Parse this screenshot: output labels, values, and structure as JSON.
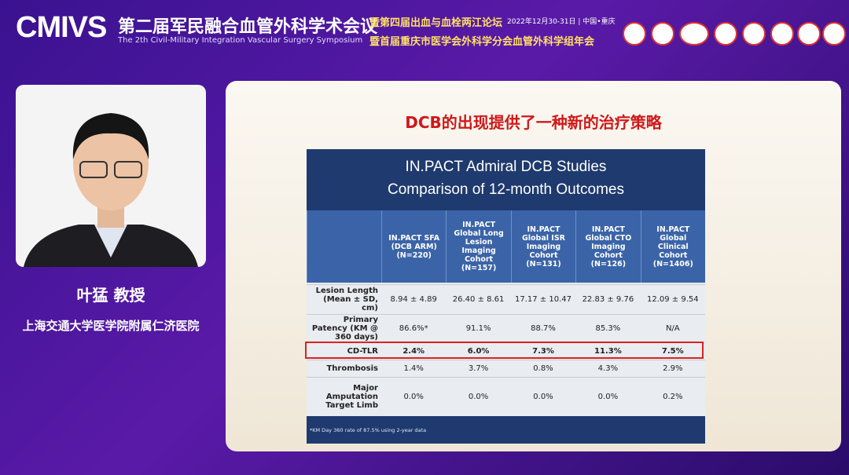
{
  "header": {
    "logo": "CMIVS",
    "title": "第二届军民融合血管外科学术会议",
    "subtitle": "The 2th Civil-Military Integration Vascular Surgery Symposium",
    "forum1": "暨第四届出血与血栓两江论坛",
    "forum2": "暨首届重庆市医学会外科学分会血管外科学组年会",
    "date": "2022年12月30-31日 | 中国•重庆"
  },
  "speaker": {
    "name": "叶猛 教授",
    "affiliation": "上海交通大学医学院附属仁济医院"
  },
  "slide": {
    "title": "DCB的出现提供了一种新的治疗策略",
    "table": {
      "title": [
        "IN.PACT Admiral DCB Studies",
        "Comparison of 12-month Outcomes"
      ],
      "columns": [
        "IN.PACT SFA (DCB ARM) (N=220)",
        "IN.PACT Global Long Lesion Imaging Cohort (N=157)",
        "IN.PACT Global ISR Imaging Cohort (N=131)",
        "IN.PACT Global CTO Imaging Cohort (N=126)",
        "IN.PACT Global Clinical Cohort (N=1406)"
      ],
      "rows": [
        [
          "Lesion Length (Mean ± SD, cm)",
          "8.94 ± 4.89",
          "26.40 ± 8.61",
          "17.17 ± 10.47",
          "22.83 ± 9.76",
          "12.09 ± 9.54"
        ],
        [
          "Primary Patency (KM @ 360 days)",
          "86.6%*",
          "91.1%",
          "88.7%",
          "85.3%",
          "N/A"
        ],
        [
          "CD-TLR",
          "2.4%",
          "6.0%",
          "7.3%",
          "11.3%",
          "7.5%"
        ],
        [
          "Thrombosis",
          "1.4%",
          "3.7%",
          "0.8%",
          "4.3%",
          "2.9%"
        ],
        [
          "Major Amputation Target Limb",
          "0.0%",
          "0.0%",
          "0.0%",
          "0.0%",
          "0.2%"
        ]
      ],
      "footnote": "*KM Day 360 rate of 87.5% using 2-year data"
    }
  }
}
